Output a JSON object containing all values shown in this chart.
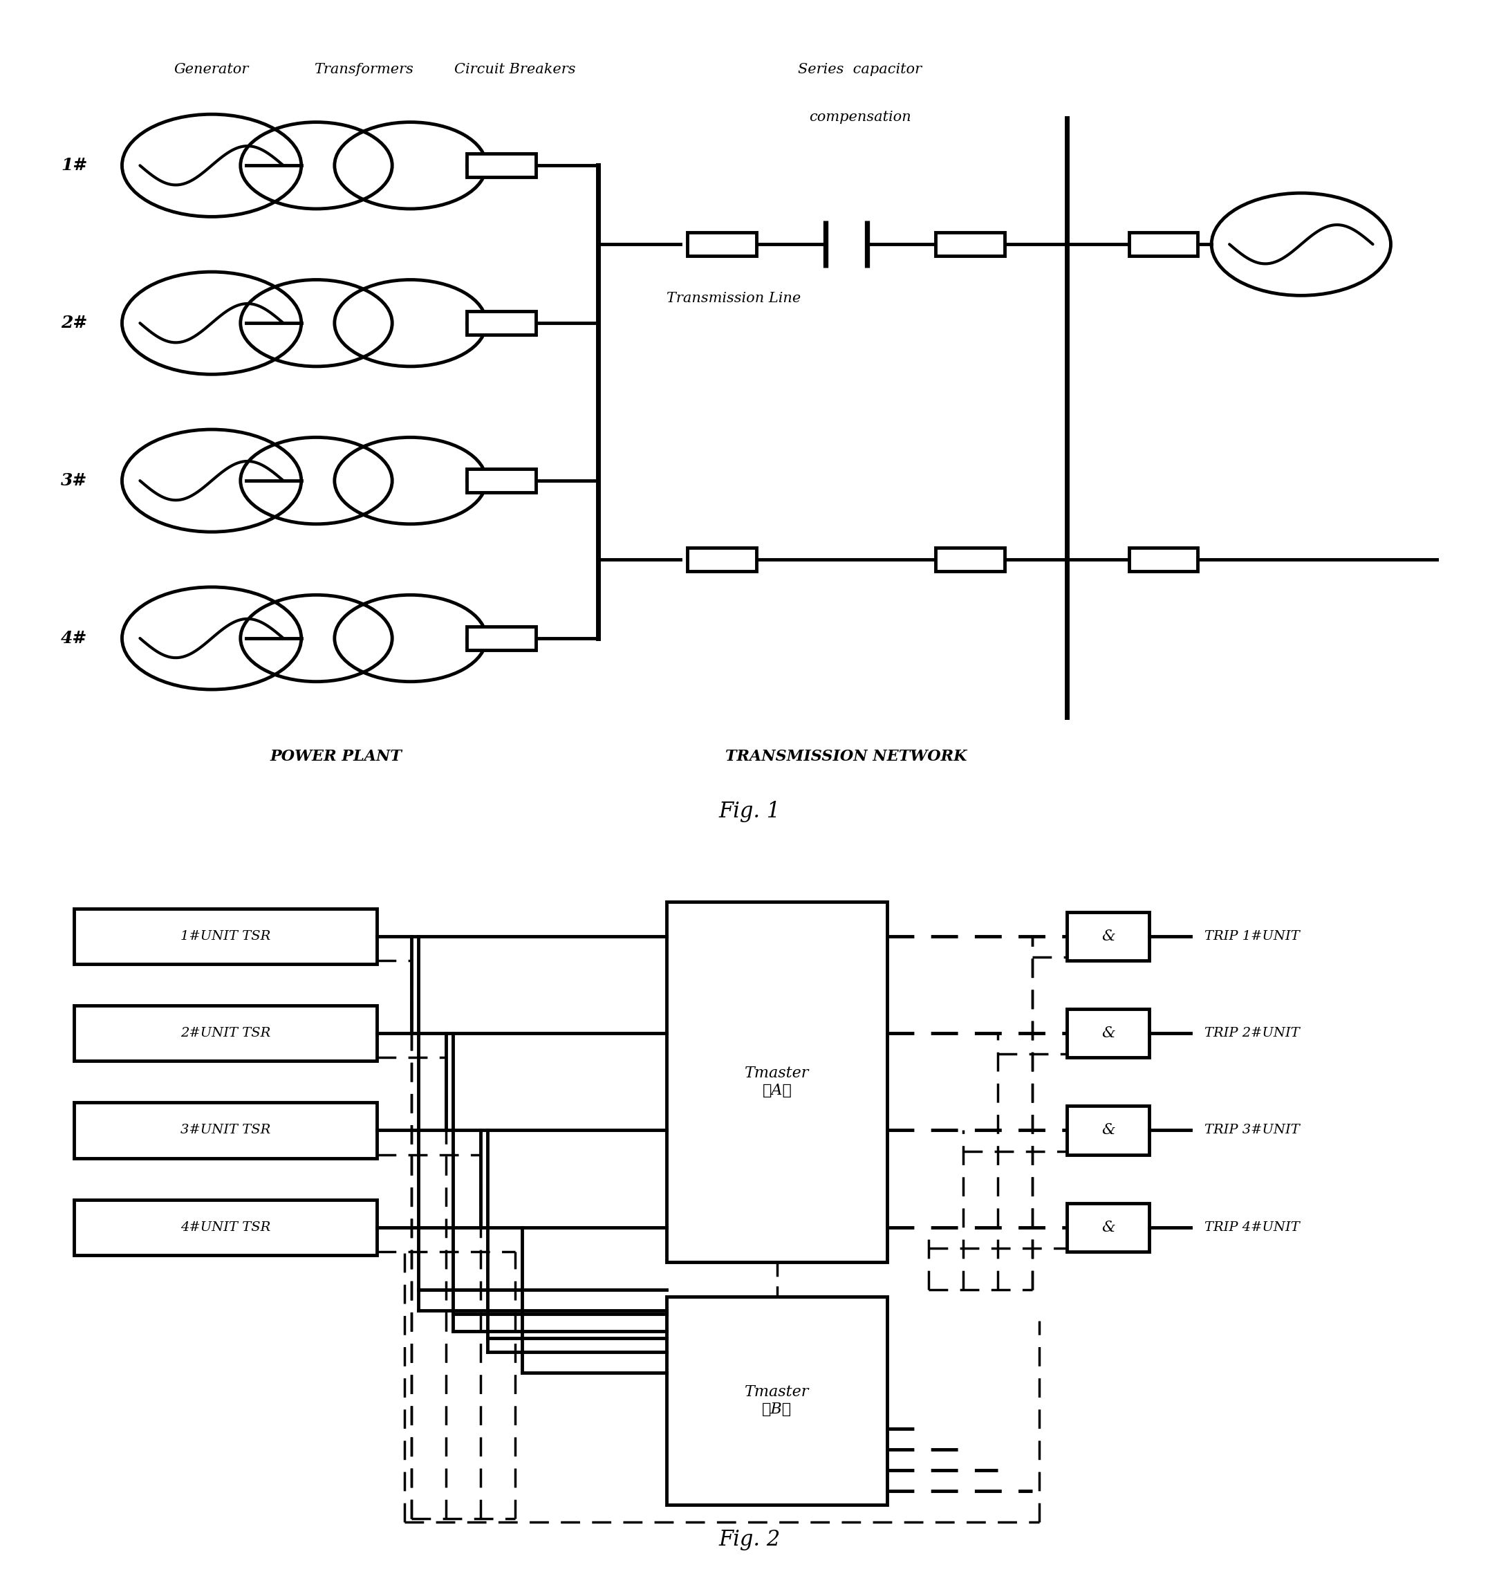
{
  "fig1": {
    "title": "Fig. 1",
    "header_generator": "Generator",
    "header_transformers": "Transformers",
    "header_cb": "Circuit Breakers",
    "series_cap_line1": "Series  capacitor",
    "series_cap_line2": "compensation",
    "trans_line_label": "Transmission Line",
    "power_plant_label": "POWER PLANT",
    "trans_network_label": "TRANSMISSION NETWORK",
    "unit_labels": [
      "1#",
      "2#",
      "3#",
      "4#"
    ]
  },
  "fig2": {
    "title": "Fig. 2",
    "tsr_labels": [
      "1#UNIT TSR",
      "2#UNIT TSR",
      "3#UNIT TSR",
      "4#UNIT TSR"
    ],
    "trip_labels": [
      "TRIP 1#UNIT",
      "TRIP 2#UNIT",
      "TRIP 3#UNIT",
      "TRIP 4#UNIT"
    ],
    "tmaster_a_text": "Tmaster\n（A）",
    "tmaster_b_text": "Tmaster\n（B）",
    "and_symbol": "&"
  },
  "lw": 2.5,
  "hlw": 3.5,
  "blw": 5.0
}
